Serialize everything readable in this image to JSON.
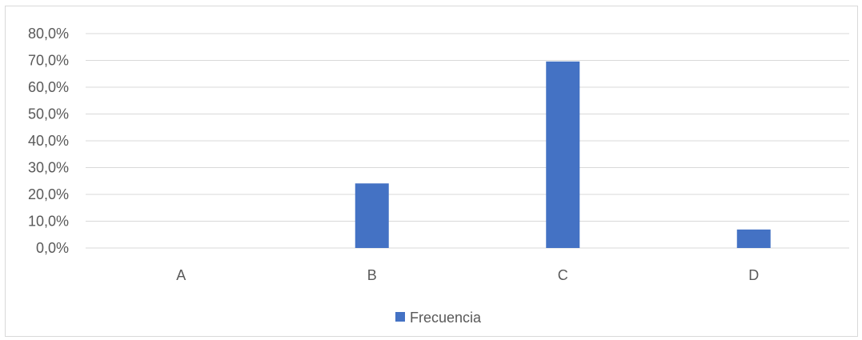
{
  "chart_data": {
    "type": "bar",
    "categories": [
      "A",
      "B",
      "C",
      "D"
    ],
    "series": [
      {
        "name": "Frecuencia",
        "values": [
          0.0,
          24.1,
          69.6,
          6.9
        ],
        "color": "#4472c4"
      }
    ],
    "ylim": [
      0,
      80
    ],
    "ytick_step": 10,
    "ytick_labels": [
      "0,0%",
      "10,0%",
      "20,0%",
      "30,0%",
      "40,0%",
      "50,0%",
      "60,0%",
      "70,0%",
      "80,0%"
    ],
    "xlabel": "",
    "ylabel": "",
    "title": "",
    "grid": true,
    "gridline_color": "#d9d9d9",
    "axis_label_color": "#595959",
    "legend_position": "bottom"
  }
}
